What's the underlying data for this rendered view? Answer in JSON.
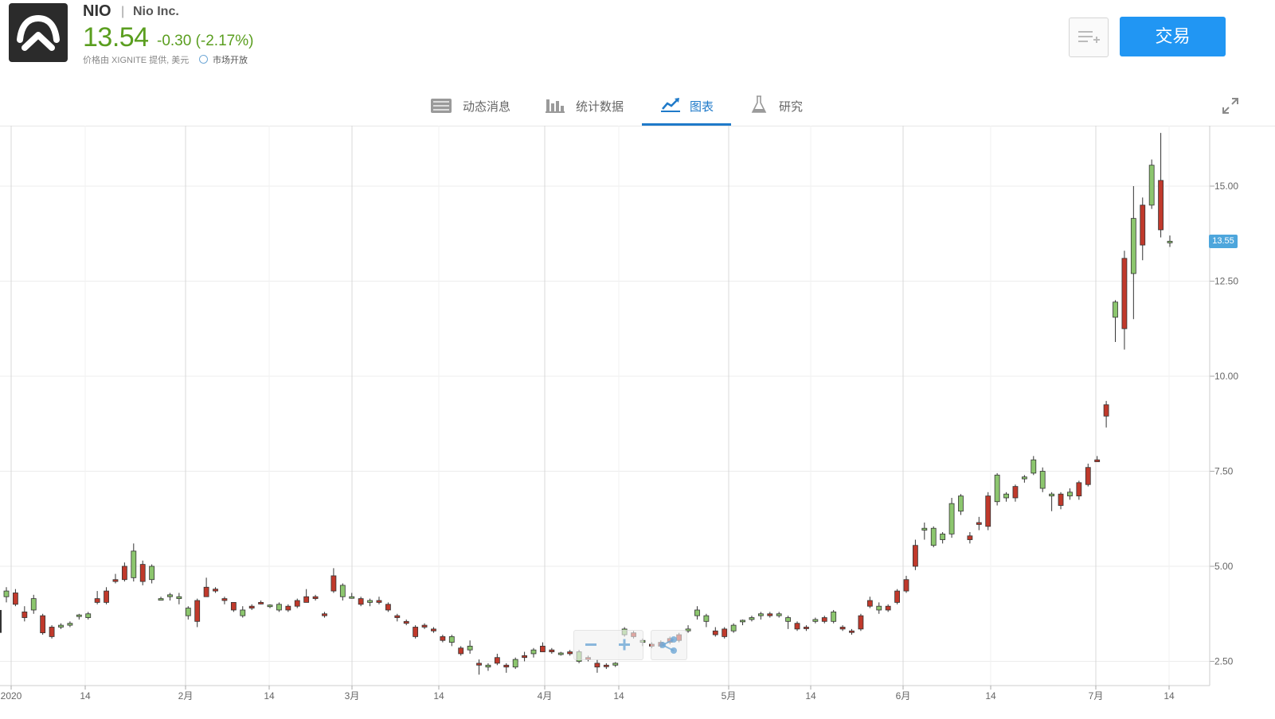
{
  "header": {
    "ticker": "NIO",
    "separator": "|",
    "company": "Nio Inc.",
    "price": "13.54",
    "change": "-0.30 (-2.17%)",
    "provider": "价格由 XIGNITE 提供, 美元",
    "market_status": "市场开放",
    "trade_label": "交易",
    "price_color": "#5a9e1f",
    "accent_color": "#2196f3"
  },
  "tabs": [
    {
      "label": "动态消息",
      "icon": "newspaper-icon"
    },
    {
      "label": "统计数据",
      "icon": "bar-chart-icon"
    },
    {
      "label": "图表",
      "icon": "line-chart-icon",
      "active": true
    },
    {
      "label": "研究",
      "icon": "flask-icon"
    }
  ],
  "chart_data": {
    "type": "candlestick",
    "y_ticks": [
      "15.00",
      "12.50",
      "10.00",
      "7.50",
      "5.00",
      "2.50"
    ],
    "y_tick_values": [
      15,
      12.5,
      10,
      7.5,
      5,
      2.5
    ],
    "ylim": [
      2.2,
      16.2
    ],
    "x_tick_labels": [
      "2020",
      "14",
      "2月",
      "14",
      "3月",
      "14",
      "4月",
      "14",
      "5月",
      "14",
      "6月",
      "14",
      "7月",
      "14"
    ],
    "month_labels": [
      "2020",
      "2月",
      "3月",
      "4月",
      "5月",
      "6月",
      "7月"
    ],
    "last_price_tag": "13.55",
    "grid": true,
    "up_color": "#8cc66e",
    "down_color": "#c0392b",
    "candles": [
      [
        4.2,
        4.45,
        4.05,
        4.35
      ],
      [
        4.3,
        4.4,
        3.95,
        4.0
      ],
      [
        3.8,
        3.95,
        3.55,
        3.65
      ],
      [
        3.85,
        4.25,
        3.75,
        4.15
      ],
      [
        3.7,
        3.75,
        3.2,
        3.25
      ],
      [
        3.4,
        3.45,
        3.1,
        3.15
      ],
      [
        3.4,
        3.5,
        3.35,
        3.45
      ],
      [
        3.45,
        3.55,
        3.4,
        3.5
      ],
      [
        3.7,
        3.75,
        3.6,
        3.72
      ],
      [
        3.65,
        3.8,
        3.6,
        3.75
      ],
      [
        4.15,
        4.35,
        4.0,
        4.05
      ],
      [
        4.35,
        4.45,
        4.0,
        4.05
      ],
      [
        4.65,
        4.8,
        4.55,
        4.6
      ],
      [
        5.0,
        5.1,
        4.6,
        4.65
      ],
      [
        4.7,
        5.6,
        4.6,
        5.4
      ],
      [
        5.05,
        5.15,
        4.5,
        4.6
      ],
      [
        4.65,
        5.05,
        4.55,
        5.0
      ],
      [
        4.15,
        4.2,
        4.1,
        4.15
      ],
      [
        4.2,
        4.3,
        4.1,
        4.25
      ],
      [
        4.15,
        4.3,
        4.0,
        4.2
      ],
      [
        3.7,
        3.95,
        3.6,
        3.9
      ],
      [
        4.1,
        4.15,
        3.4,
        3.55
      ],
      [
        4.45,
        4.7,
        4.25,
        4.2
      ],
      [
        4.4,
        4.45,
        4.3,
        4.35
      ],
      [
        4.15,
        4.2,
        4.0,
        4.1
      ],
      [
        4.05,
        4.05,
        3.8,
        3.85
      ],
      [
        3.7,
        3.95,
        3.65,
        3.85
      ],
      [
        3.95,
        4.0,
        3.85,
        3.9
      ],
      [
        4.05,
        4.1,
        4.0,
        4.02
      ],
      [
        3.95,
        4.0,
        3.9,
        3.98
      ],
      [
        3.85,
        4.05,
        3.8,
        4.0
      ],
      [
        3.95,
        4.0,
        3.8,
        3.85
      ],
      [
        4.1,
        4.15,
        3.9,
        3.95
      ],
      [
        4.2,
        4.4,
        4.1,
        4.05
      ],
      [
        4.2,
        4.25,
        4.1,
        4.15
      ],
      [
        3.75,
        3.8,
        3.65,
        3.7
      ],
      [
        4.75,
        4.95,
        4.3,
        4.35
      ],
      [
        4.2,
        4.55,
        4.1,
        4.5
      ],
      [
        4.2,
        4.3,
        4.15,
        4.2
      ],
      [
        4.15,
        4.2,
        3.95,
        4.0
      ],
      [
        4.05,
        4.15,
        3.95,
        4.1
      ],
      [
        4.1,
        4.2,
        4.0,
        4.05
      ],
      [
        4.0,
        4.05,
        3.8,
        3.85
      ],
      [
        3.7,
        3.75,
        3.55,
        3.65
      ],
      [
        3.55,
        3.6,
        3.45,
        3.5
      ],
      [
        3.4,
        3.45,
        3.1,
        3.15
      ],
      [
        3.45,
        3.5,
        3.35,
        3.4
      ],
      [
        3.35,
        3.4,
        3.25,
        3.3
      ],
      [
        3.15,
        3.2,
        3.0,
        3.05
      ],
      [
        3.0,
        3.2,
        2.9,
        3.15
      ],
      [
        2.85,
        2.9,
        2.65,
        2.7
      ],
      [
        2.8,
        3.05,
        2.7,
        2.9
      ],
      [
        2.45,
        2.55,
        2.15,
        2.4
      ],
      [
        2.35,
        2.45,
        2.25,
        2.4
      ],
      [
        2.6,
        2.7,
        2.4,
        2.45
      ],
      [
        2.4,
        2.45,
        2.2,
        2.35
      ],
      [
        2.35,
        2.6,
        2.3,
        2.55
      ],
      [
        2.65,
        2.75,
        2.5,
        2.6
      ],
      [
        2.7,
        2.85,
        2.6,
        2.8
      ],
      [
        2.9,
        3.0,
        2.8,
        2.75
      ],
      [
        2.8,
        2.85,
        2.7,
        2.75
      ],
      [
        2.7,
        2.75,
        2.65,
        2.72
      ],
      [
        2.75,
        2.8,
        2.65,
        2.7
      ],
      [
        2.5,
        2.8,
        2.45,
        2.75
      ],
      [
        2.6,
        2.65,
        2.5,
        2.55
      ],
      [
        2.45,
        2.55,
        2.2,
        2.35
      ],
      [
        2.4,
        2.45,
        2.3,
        2.38
      ],
      [
        2.4,
        2.48,
        2.35,
        2.45
      ],
      [
        3.2,
        3.4,
        3.15,
        3.35
      ],
      [
        3.25,
        3.3,
        3.1,
        3.15
      ],
      [
        3.0,
        3.1,
        2.9,
        3.05
      ],
      [
        2.95,
        3.0,
        2.85,
        2.9
      ],
      [
        3.0,
        3.05,
        2.85,
        2.9
      ],
      [
        3.1,
        3.15,
        2.95,
        3.0
      ],
      [
        3.2,
        3.25,
        3.0,
        3.05
      ],
      [
        3.3,
        3.45,
        3.25,
        3.35
      ],
      [
        3.7,
        3.95,
        3.6,
        3.85
      ],
      [
        3.55,
        3.75,
        3.4,
        3.7
      ],
      [
        3.3,
        3.4,
        3.15,
        3.2
      ],
      [
        3.35,
        3.4,
        3.1,
        3.15
      ],
      [
        3.3,
        3.5,
        3.25,
        3.45
      ],
      [
        3.55,
        3.6,
        3.45,
        3.58
      ],
      [
        3.6,
        3.7,
        3.55,
        3.65
      ],
      [
        3.7,
        3.8,
        3.6,
        3.75
      ],
      [
        3.75,
        3.8,
        3.65,
        3.7
      ],
      [
        3.7,
        3.8,
        3.65,
        3.75
      ],
      [
        3.55,
        3.7,
        3.35,
        3.65
      ],
      [
        3.5,
        3.55,
        3.3,
        3.35
      ],
      [
        3.4,
        3.45,
        3.3,
        3.38
      ],
      [
        3.55,
        3.65,
        3.5,
        3.6
      ],
      [
        3.65,
        3.7,
        3.5,
        3.55
      ],
      [
        3.55,
        3.85,
        3.5,
        3.8
      ],
      [
        3.4,
        3.45,
        3.3,
        3.35
      ],
      [
        3.3,
        3.35,
        3.2,
        3.28
      ],
      [
        3.7,
        3.75,
        3.3,
        3.35
      ],
      [
        4.1,
        4.2,
        3.9,
        3.95
      ],
      [
        3.85,
        4.05,
        3.75,
        3.95
      ],
      [
        3.95,
        4.0,
        3.8,
        3.85
      ],
      [
        4.35,
        4.4,
        4.0,
        4.05
      ],
      [
        4.65,
        4.75,
        4.3,
        4.35
      ],
      [
        5.55,
        5.7,
        4.9,
        5.0
      ],
      [
        5.95,
        6.15,
        5.7,
        6.0
      ],
      [
        5.55,
        6.05,
        5.5,
        6.0
      ],
      [
        5.7,
        5.9,
        5.6,
        5.85
      ],
      [
        5.85,
        6.8,
        5.75,
        6.65
      ],
      [
        6.45,
        6.9,
        6.35,
        6.85
      ],
      [
        5.8,
        5.9,
        5.6,
        5.7
      ],
      [
        6.15,
        6.3,
        5.95,
        6.1
      ],
      [
        6.85,
        6.95,
        5.95,
        6.05
      ],
      [
        6.7,
        7.45,
        6.6,
        7.4
      ],
      [
        6.8,
        6.95,
        6.7,
        6.9
      ],
      [
        7.1,
        7.15,
        6.7,
        6.8
      ],
      [
        7.3,
        7.4,
        7.2,
        7.35
      ],
      [
        7.45,
        7.9,
        7.4,
        7.8
      ],
      [
        7.05,
        7.6,
        6.95,
        7.5
      ],
      [
        6.85,
        6.95,
        6.45,
        6.9
      ],
      [
        6.9,
        6.95,
        6.5,
        6.6
      ],
      [
        6.85,
        7.05,
        6.75,
        6.95
      ],
      [
        7.2,
        7.25,
        6.75,
        6.85
      ],
      [
        7.6,
        7.7,
        7.1,
        7.15
      ],
      [
        7.8,
        7.9,
        7.75,
        7.75
      ],
      [
        9.25,
        9.35,
        8.65,
        8.95
      ],
      [
        11.55,
        12.0,
        10.9,
        11.95
      ],
      [
        13.1,
        13.3,
        10.7,
        11.25
      ],
      [
        12.7,
        15.0,
        11.5,
        14.15
      ],
      [
        14.5,
        14.7,
        13.05,
        13.45
      ],
      [
        14.5,
        15.7,
        14.4,
        15.55
      ],
      [
        15.15,
        16.4,
        13.65,
        13.85
      ],
      [
        13.55,
        13.7,
        13.4,
        13.55
      ]
    ]
  },
  "controls": {
    "zoom_out_icon": "minus-icon",
    "zoom_in_icon": "plus-icon",
    "share_icon": "share-icon"
  }
}
